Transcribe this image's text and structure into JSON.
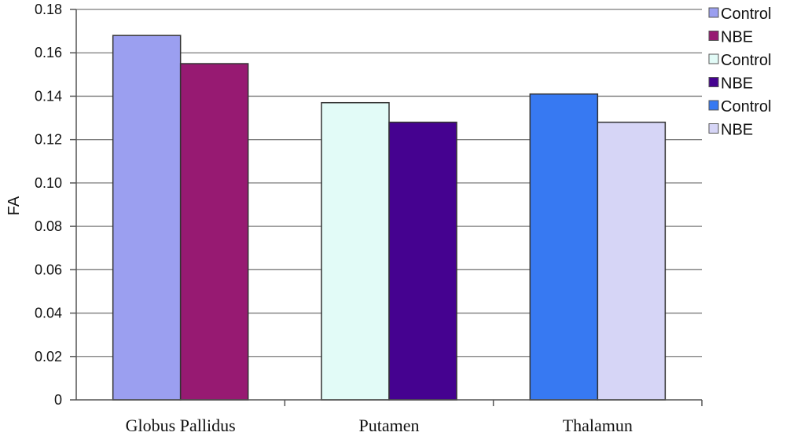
{
  "chart_data": {
    "type": "bar",
    "title": "",
    "xlabel": "",
    "ylabel": "FA",
    "ylim": [
      0,
      0.18
    ],
    "yticks": [
      "0",
      "0.02",
      "0.04",
      "0.06",
      "0.08",
      "0.10",
      "0.12",
      "0.14",
      "0.16",
      "0.18"
    ],
    "grid": true,
    "legend_position": "right",
    "categories": [
      "Globus Pallidus",
      "Putamen",
      "Thalamun"
    ],
    "bars": [
      {
        "category": "Globus Pallidus",
        "series": "Control",
        "value": 0.168,
        "color": "#9b9ff0"
      },
      {
        "category": "Globus Pallidus",
        "series": "NBE",
        "value": 0.155,
        "color": "#971a72"
      },
      {
        "category": "Putamen",
        "series": "Control",
        "value": 0.137,
        "color": "#e2fbf7"
      },
      {
        "category": "Putamen",
        "series": "NBE",
        "value": 0.128,
        "color": "#450290"
      },
      {
        "category": "Thalamun",
        "series": "Control",
        "value": 0.141,
        "color": "#3779f2"
      },
      {
        "category": "Thalamun",
        "series": "NBE",
        "value": 0.128,
        "color": "#d6d5f6"
      }
    ],
    "legend": [
      {
        "label": "Control",
        "color": "#9b9ff0"
      },
      {
        "label": "NBE",
        "color": "#971a72"
      },
      {
        "label": "Control",
        "color": "#e2fbf7"
      },
      {
        "label": "NBE",
        "color": "#450290"
      },
      {
        "label": "Control",
        "color": "#3779f2"
      },
      {
        "label": "NBE",
        "color": "#d6d5f6"
      }
    ]
  }
}
